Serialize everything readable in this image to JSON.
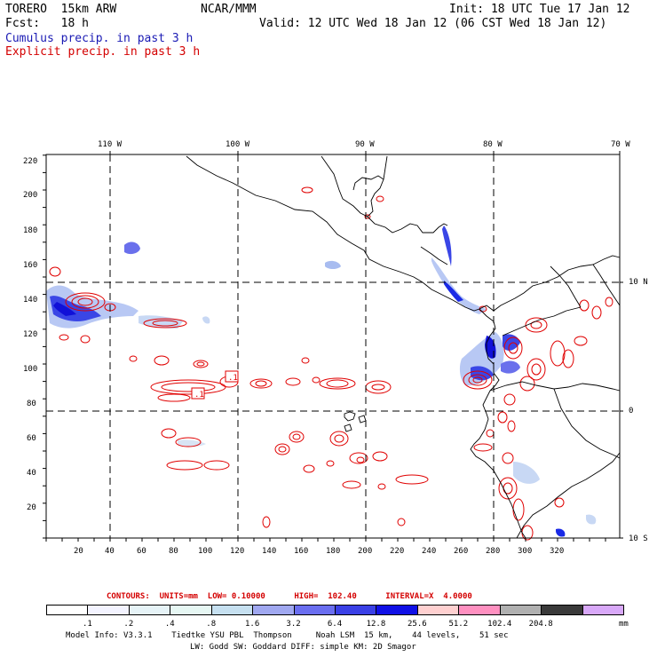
{
  "header": {
    "model": "TORERO  15km ARW",
    "center": "NCAR/MMM",
    "init": "Init: 18 UTC Tue 17 Jan 12",
    "fcst": "Fcst:   18 h",
    "valid": "Valid: 12 UTC Wed 18 Jan 12 (06 CST Wed 18 Jan 12)",
    "cumulus": "Cumulus precip. in past 3 h",
    "explicit": "Explicit precip. in past 3 h"
  },
  "map": {
    "lon_labels": [
      "110 W",
      "100 W",
      "90 W",
      "80 W",
      "70 W"
    ],
    "lat_labels": [
      "10 N",
      "0",
      "10 S"
    ],
    "y_grid_labels": [
      "220",
      "200",
      "180",
      "160",
      "140",
      "120",
      "100",
      "80",
      "60",
      "40",
      "20"
    ],
    "x_grid_labels": [
      "20",
      "40",
      "60",
      "80",
      "100",
      "120",
      "140",
      "160",
      "180",
      "200",
      "220",
      "240",
      "260",
      "280",
      "300",
      "320"
    ],
    "low_markers": [
      ".1",
      ".1"
    ],
    "colors": {
      "frame": "#000000",
      "grid": "#000000",
      "coast": "#000000",
      "cumulus": "#1a2ae6",
      "explicit": "#e00000"
    }
  },
  "contours": {
    "text": "CONTOURS:  UNITS=mm  LOW= 0.10000      HIGH=  102.40      INTERVAL=X  4.0000"
  },
  "legend": {
    "unit": "mm",
    "bins": [
      {
        "label": ".1",
        "color": "#ffffff"
      },
      {
        "label": ".2",
        "color": "#f3f3ff"
      },
      {
        "label": ".4",
        "color": "#e6f3f7"
      },
      {
        "label": ".8",
        "color": "#e6f7f3"
      },
      {
        "label": "1.6",
        "color": "#c6e0f0"
      },
      {
        "label": "3.2",
        "color": "#a0a8f0"
      },
      {
        "label": "6.4",
        "color": "#6a6ef0"
      },
      {
        "label": "12.8",
        "color": "#3a40e6"
      },
      {
        "label": "25.6",
        "color": "#1010e6"
      },
      {
        "label": "51.2",
        "color": "#ffd0d0"
      },
      {
        "label": "102.4",
        "color": "#ff90c0"
      },
      {
        "label": "204.8",
        "color": "#b0b0b0"
      },
      {
        "label": "",
        "color": "#3a3a3a"
      },
      {
        "label": "",
        "color": "#d8a8f8"
      }
    ]
  },
  "footer": {
    "line1": "Model Info: V3.3.1    Tiedtke YSU PBL  Thompson     Noah LSM  15 km,    44 levels,    51 sec",
    "line2": "LW: Godd SW: Goddard DIFF: simple KM: 2D Smagor"
  }
}
